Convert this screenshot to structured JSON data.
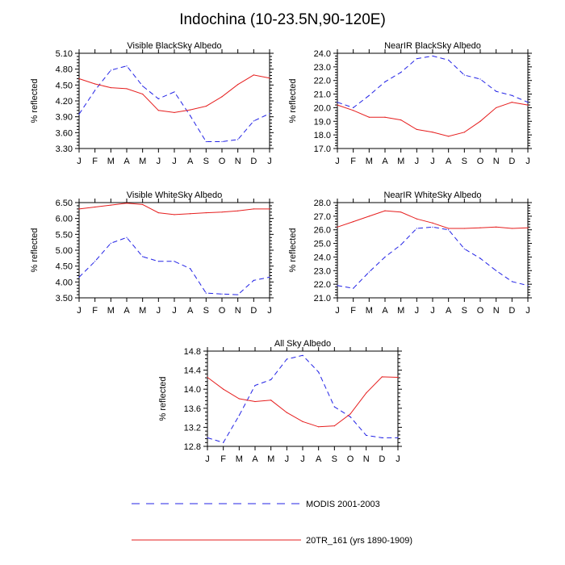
{
  "title": "Indochina (10-23.5N,90-120E)",
  "colors": {
    "modis": "#2323e6",
    "model": "#e61e1e"
  },
  "legend": [
    {
      "key": "modis",
      "label": "MODIS 2001-2003",
      "style": "dashed"
    },
    {
      "key": "model",
      "label": "20TR_161 (yrs 1890-1909)",
      "style": "solid"
    }
  ],
  "chart_data": [
    {
      "type": "line",
      "title": "Visible BlackSky Albedo",
      "ylabel": "% reflected",
      "categories": [
        "J",
        "F",
        "M",
        "A",
        "M",
        "J",
        "J",
        "A",
        "S",
        "O",
        "N",
        "D",
        "J"
      ],
      "ylim": [
        3.3,
        5.1
      ],
      "yticks": [
        "3.30",
        "3.60",
        "3.90",
        "4.20",
        "4.50",
        "4.80",
        "5.10"
      ],
      "series": [
        {
          "name": "MODIS 2001-2003",
          "key": "modis",
          "values": [
            3.95,
            4.4,
            4.78,
            4.86,
            4.48,
            4.24,
            4.37,
            3.92,
            3.43,
            3.43,
            3.47,
            3.82,
            3.96
          ]
        },
        {
          "name": "20TR_161 (yrs 1890-1909)",
          "key": "model",
          "values": [
            4.62,
            4.52,
            4.45,
            4.43,
            4.33,
            4.02,
            3.98,
            4.03,
            4.1,
            4.28,
            4.51,
            4.69,
            4.63
          ]
        }
      ]
    },
    {
      "type": "line",
      "title": "NearIR BlackSky Albedo",
      "ylabel": "% reflected",
      "categories": [
        "J",
        "F",
        "M",
        "A",
        "M",
        "J",
        "J",
        "A",
        "S",
        "O",
        "N",
        "D",
        "J"
      ],
      "ylim": [
        17.0,
        24.0
      ],
      "yticks": [
        "17.0",
        "18.0",
        "19.0",
        "20.0",
        "21.0",
        "22.0",
        "23.0",
        "24.0"
      ],
      "series": [
        {
          "name": "MODIS 2001-2003",
          "key": "modis",
          "values": [
            20.4,
            20.0,
            20.9,
            21.9,
            22.6,
            23.6,
            23.8,
            23.5,
            22.4,
            22.1,
            21.2,
            20.9,
            20.4
          ]
        },
        {
          "name": "20TR_161 (yrs 1890-1909)",
          "key": "model",
          "values": [
            20.2,
            19.8,
            19.3,
            19.3,
            19.1,
            18.4,
            18.2,
            17.9,
            18.2,
            19.0,
            20.0,
            20.4,
            20.2
          ]
        }
      ]
    },
    {
      "type": "line",
      "title": "Visible WhiteSky Albedo",
      "ylabel": "% reflected",
      "categories": [
        "J",
        "F",
        "M",
        "A",
        "M",
        "J",
        "J",
        "A",
        "S",
        "O",
        "N",
        "D",
        "J"
      ],
      "ylim": [
        3.5,
        6.5
      ],
      "yticks": [
        "3.50",
        "4.00",
        "4.50",
        "5.00",
        "5.50",
        "6.00",
        "6.50"
      ],
      "series": [
        {
          "name": "MODIS 2001-2003",
          "key": "modis",
          "values": [
            4.15,
            4.65,
            5.22,
            5.4,
            4.8,
            4.65,
            4.65,
            4.42,
            3.65,
            3.62,
            3.6,
            4.05,
            4.15
          ]
        },
        {
          "name": "20TR_161 (yrs 1890-1909)",
          "key": "model",
          "values": [
            6.3,
            6.36,
            6.42,
            6.48,
            6.44,
            6.18,
            6.12,
            6.15,
            6.18,
            6.2,
            6.24,
            6.3,
            6.3
          ]
        }
      ]
    },
    {
      "type": "line",
      "title": "NearIR WhiteSky Albedo",
      "ylabel": "% reflected",
      "categories": [
        "J",
        "F",
        "M",
        "A",
        "M",
        "J",
        "J",
        "A",
        "S",
        "O",
        "N",
        "D",
        "J"
      ],
      "ylim": [
        21.0,
        28.0
      ],
      "yticks": [
        "21.0",
        "22.0",
        "23.0",
        "24.0",
        "25.0",
        "26.0",
        "27.0",
        "28.0"
      ],
      "series": [
        {
          "name": "MODIS 2001-2003",
          "key": "modis",
          "values": [
            21.9,
            21.7,
            22.9,
            24.0,
            24.9,
            26.1,
            26.2,
            26.0,
            24.6,
            23.9,
            23.0,
            22.2,
            21.9
          ]
        },
        {
          "name": "20TR_161 (yrs 1890-1909)",
          "key": "model",
          "values": [
            26.2,
            26.6,
            27.0,
            27.4,
            27.3,
            26.8,
            26.5,
            26.1,
            26.1,
            26.15,
            26.2,
            26.1,
            26.15
          ]
        }
      ]
    },
    {
      "type": "line",
      "title": "All Sky Albedo",
      "ylabel": "% reflected",
      "categories": [
        "J",
        "F",
        "M",
        "A",
        "M",
        "J",
        "J",
        "A",
        "S",
        "O",
        "N",
        "D",
        "J"
      ],
      "ylim": [
        12.8,
        14.8
      ],
      "yticks": [
        "12.8",
        "13.2",
        "13.6",
        "14.0",
        "14.4",
        "14.8"
      ],
      "series": [
        {
          "name": "MODIS 2001-2003",
          "key": "modis",
          "values": [
            12.98,
            12.88,
            13.45,
            14.08,
            14.2,
            14.63,
            14.71,
            14.36,
            13.63,
            13.42,
            13.03,
            12.98,
            12.98
          ]
        },
        {
          "name": "20TR_161 (yrs 1890-1909)",
          "key": "model",
          "values": [
            14.25,
            14.0,
            13.8,
            13.74,
            13.77,
            13.51,
            13.32,
            13.21,
            13.23,
            13.48,
            13.92,
            14.26,
            14.25
          ]
        }
      ]
    }
  ]
}
